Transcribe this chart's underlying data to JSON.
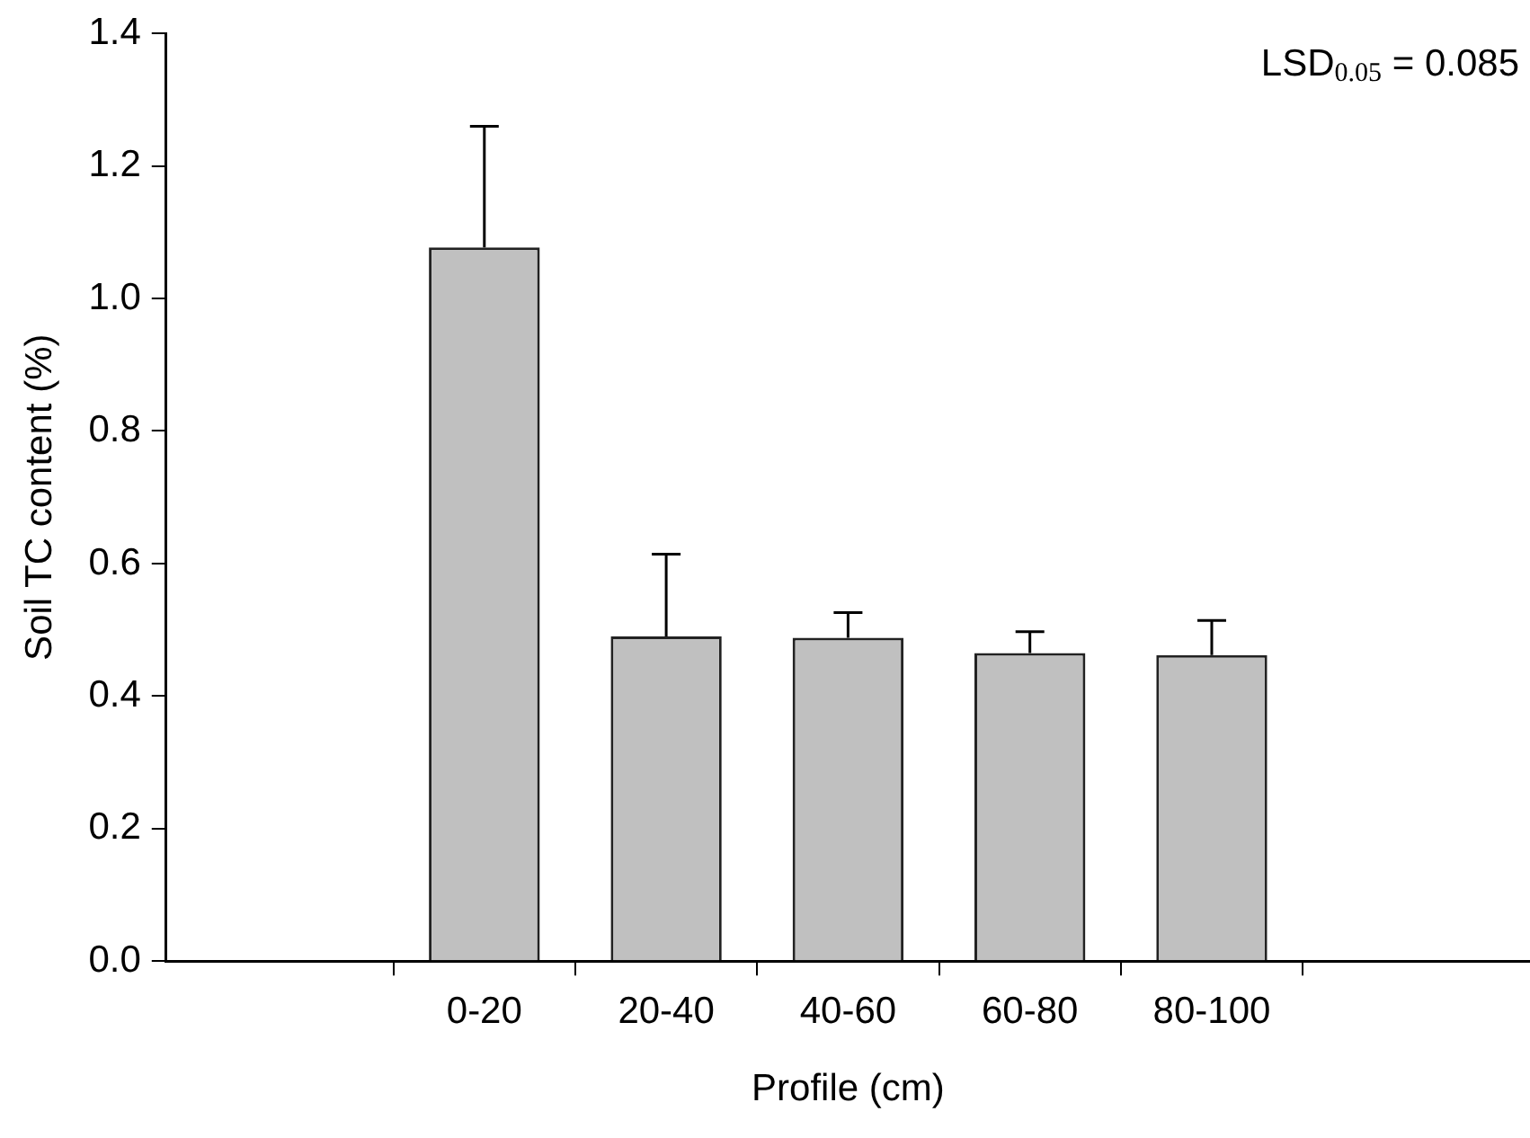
{
  "chart_data": {
    "type": "bar",
    "xlabel": "Profile (cm)",
    "ylabel": "Soil TC content (%)",
    "categories": [
      "0-20",
      "20-40",
      "40-60",
      "60-80",
      "80-100"
    ],
    "values": [
      1.077,
      0.49,
      0.488,
      0.465,
      0.462
    ],
    "errors": [
      [
        1.077,
        1.26
      ],
      [
        0.49,
        0.614
      ],
      [
        0.488,
        0.526
      ],
      [
        0.465,
        0.497
      ],
      [
        0.462,
        0.514
      ]
    ],
    "color": "#c0c0c0",
    "ylim": [
      0,
      1.4
    ],
    "yticks": [
      {
        "value": 0,
        "label": "0.0"
      },
      0.2,
      0.4,
      0.6,
      0.8,
      {
        "value": 1,
        "label": "1.0"
      },
      1.2,
      1.4
    ],
    "grid": false,
    "legend": false,
    "annotations": [
      "LSD$_{0.05}$ = 0.085"
    ]
  }
}
